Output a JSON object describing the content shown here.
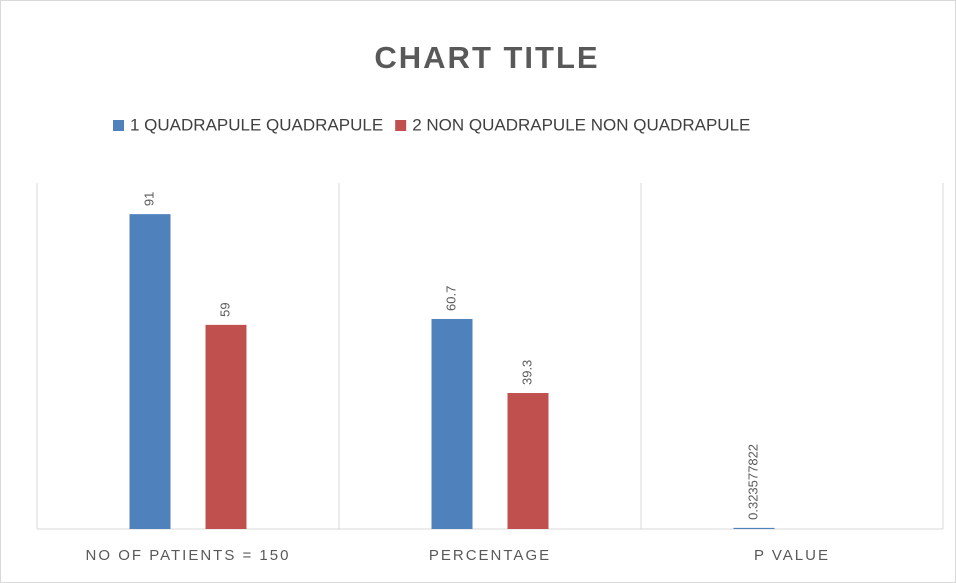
{
  "chart_data": {
    "type": "bar",
    "title": "CHART TITLE",
    "categories": [
      "NO OF PATIENTS = 150",
      "PERCENTAGE",
      "P VALUE"
    ],
    "series": [
      {
        "name": "1 QUADRAPULE QUADRAPULE",
        "color": "#4f81bd",
        "values": [
          91,
          60.7,
          0.323577822
        ]
      },
      {
        "name": "2 NON QUADRAPULE NON QUADRAPULE",
        "color": "#c0504d",
        "values": [
          59,
          39.3,
          null
        ]
      }
    ],
    "ylim": [
      0,
      100
    ],
    "legend": "top",
    "data_labels": true
  }
}
